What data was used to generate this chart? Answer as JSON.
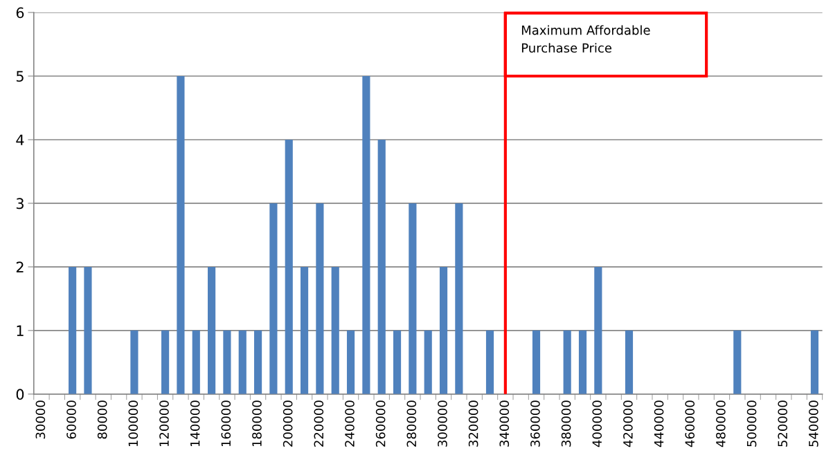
{
  "chart_data": {
    "type": "bar",
    "categories": [
      "30000",
      null,
      "60000",
      null,
      "80000",
      null,
      "100000",
      null,
      "120000",
      null,
      "140000",
      null,
      "160000",
      null,
      "180000",
      null,
      "200000",
      null,
      "220000",
      null,
      "240000",
      null,
      "260000",
      null,
      "280000",
      null,
      "300000",
      null,
      "320000",
      null,
      "340000",
      null,
      "360000",
      null,
      "380000",
      null,
      "400000",
      null,
      "420000",
      null,
      "440000",
      null,
      "460000",
      null,
      "480000",
      null,
      "500000",
      null,
      "520000",
      null,
      "540000"
    ],
    "values": [
      0,
      0,
      2,
      2,
      0,
      0,
      1,
      0,
      1,
      5,
      1,
      2,
      1,
      1,
      1,
      3,
      4,
      2,
      3,
      2,
      1,
      5,
      4,
      1,
      3,
      1,
      2,
      3,
      0,
      1,
      0,
      0,
      1,
      0,
      1,
      1,
      2,
      0,
      1,
      0,
      0,
      0,
      0,
      0,
      0,
      1,
      0,
      0,
      0,
      0,
      1
    ],
    "color": "#4f81bd",
    "ylim": [
      0,
      6
    ],
    "yticks": [
      0,
      1,
      2,
      3,
      4,
      5,
      6
    ],
    "grid": "y",
    "ref_lines": [
      {
        "axis": "x",
        "value": "340000",
        "label": "Maximum Affordable Purchase Price",
        "color": "#ff0000"
      }
    ]
  }
}
